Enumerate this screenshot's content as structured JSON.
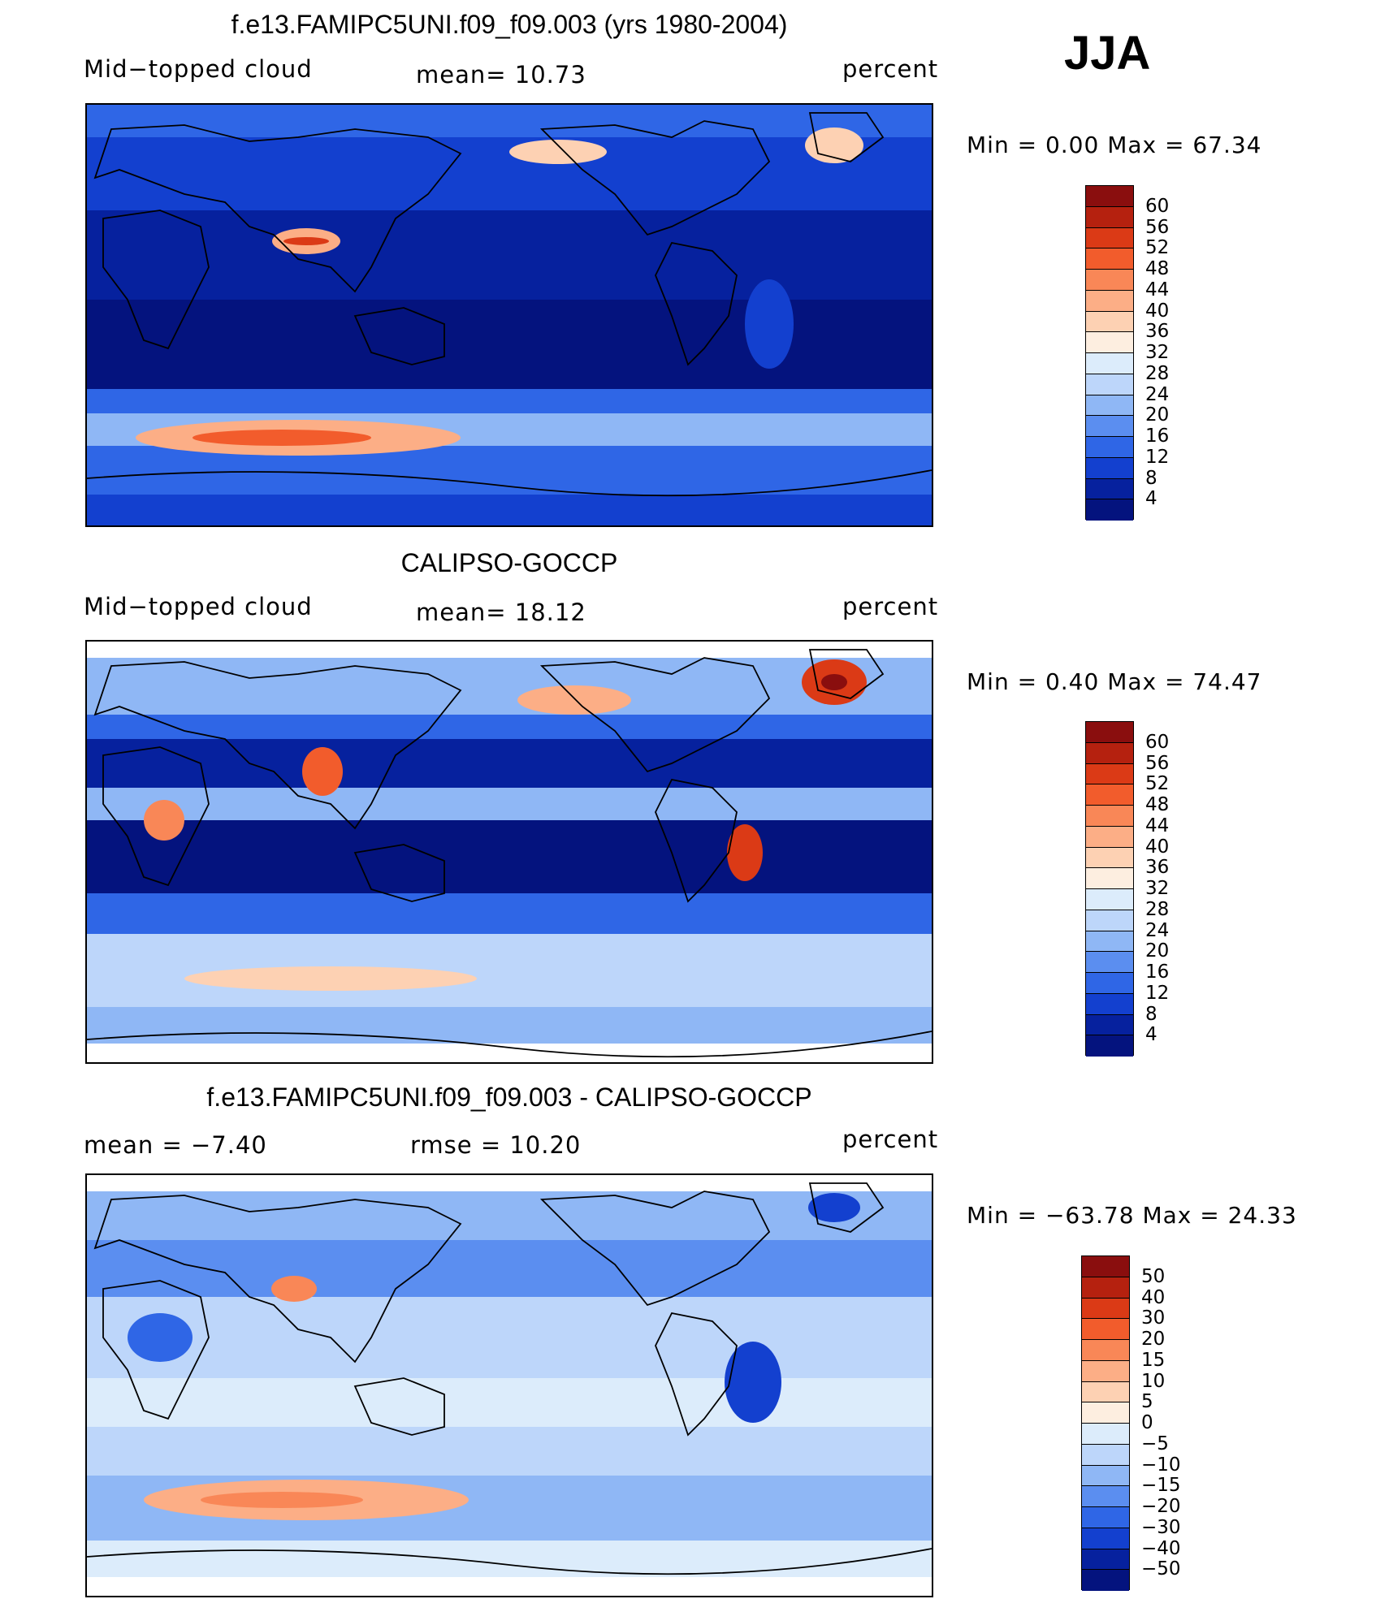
{
  "season": "JJA",
  "panels": [
    {
      "title": "f.e13.FAMIPC5UNI.f09_f09.003 (yrs 1980-2004)",
      "left_label": "Mid−topped cloud",
      "center_label": "mean=   10.73",
      "right_label": "percent",
      "minmax": "Min =    0.00 Max =   67.34",
      "colorbar_labels": [
        "60",
        "56",
        "52",
        "48",
        "44",
        "40",
        "36",
        "32",
        "28",
        "24",
        "20",
        "16",
        "12",
        "8",
        "4"
      ],
      "colorbar_colors": [
        "#8a0e0e",
        "#b5210f",
        "#db3a16",
        "#f25c2c",
        "#f98757",
        "#fcae86",
        "#fdd1b3",
        "#fdeee0",
        "#dcecfb",
        "#bdd6fa",
        "#8fb7f5",
        "#5b8ef0",
        "#2f66e6",
        "#1340cf",
        "#06219e",
        "#04137e"
      ]
    },
    {
      "title": "CALIPSO-GOCCP",
      "left_label": "Mid−topped cloud",
      "center_label": "mean=   18.12",
      "right_label": "percent",
      "minmax": "Min =    0.40 Max =   74.47",
      "colorbar_labels": [
        "60",
        "56",
        "52",
        "48",
        "44",
        "40",
        "36",
        "32",
        "28",
        "24",
        "20",
        "16",
        "12",
        "8",
        "4"
      ],
      "colorbar_colors": [
        "#8a0e0e",
        "#b5210f",
        "#db3a16",
        "#f25c2c",
        "#f98757",
        "#fcae86",
        "#fdd1b3",
        "#fdeee0",
        "#dcecfb",
        "#bdd6fa",
        "#8fb7f5",
        "#5b8ef0",
        "#2f66e6",
        "#1340cf",
        "#06219e",
        "#04137e"
      ]
    },
    {
      "title": "f.e13.FAMIPC5UNI.f09_f09.003 - CALIPSO-GOCCP",
      "left_label": "mean =   −7.40",
      "center_label": "rmse =   10.20",
      "right_label": "percent",
      "minmax": "Min = −63.78 Max =   24.33",
      "colorbar_labels": [
        "50",
        "40",
        "30",
        "20",
        "15",
        "10",
        "5",
        "0",
        "−5",
        "−10",
        "−15",
        "−20",
        "−30",
        "−40",
        "−50"
      ],
      "colorbar_colors": [
        "#8a0e0e",
        "#b5210f",
        "#db3a16",
        "#f25c2c",
        "#f98757",
        "#fcae86",
        "#fdd1b3",
        "#fdeee0",
        "#dcecfb",
        "#bdd6fa",
        "#8fb7f5",
        "#5b8ef0",
        "#2f66e6",
        "#1340cf",
        "#06219e",
        "#04137e"
      ]
    }
  ]
}
